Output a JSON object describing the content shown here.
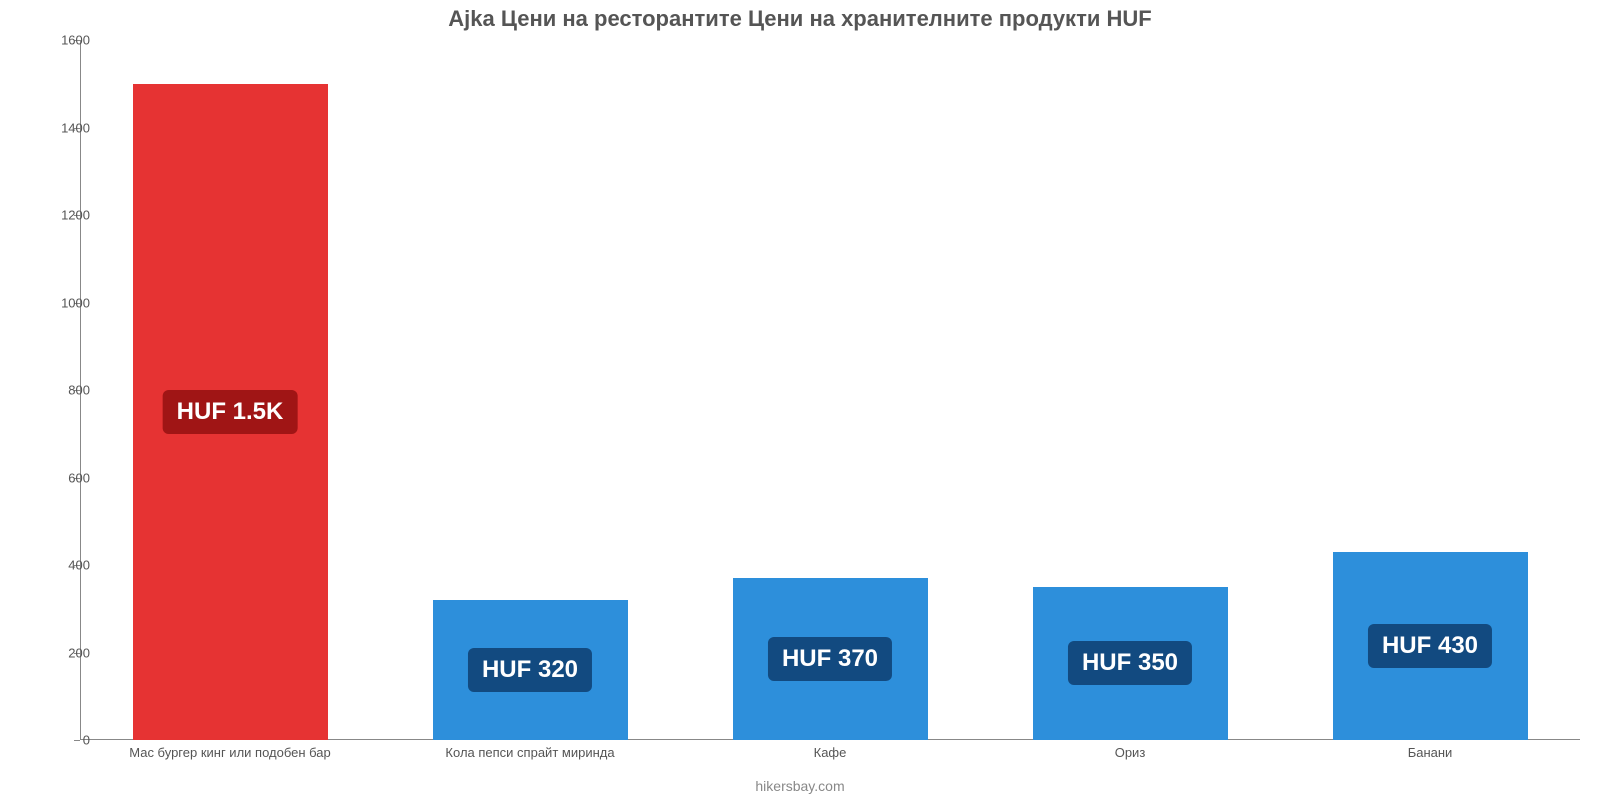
{
  "chart": {
    "type": "bar",
    "title": "Ajka Цени на ресторантите Цени на хранителните продукти HUF",
    "title_fontsize": 22,
    "title_color": "#555555",
    "source": "hikersbay.com",
    "footer_fontsize": 14,
    "footer_color": "#888888",
    "background_color": "#ffffff",
    "axis_color": "#888888",
    "axis_label_color": "#555555",
    "axis_label_fontsize": 13,
    "x_label_fontsize": 13,
    "ylim": [
      0,
      1600
    ],
    "ytick_step": 200,
    "yticks": [
      0,
      200,
      400,
      600,
      800,
      1000,
      1200,
      1400,
      1600
    ],
    "bar_width": 0.65,
    "value_label_fontsize": 24,
    "value_label_color": "#ffffff",
    "categories": [
      "Мас бургер кинг или подобен бар",
      "Кола пепси спрайт миринда",
      "Кафе",
      "Ориз",
      "Банани"
    ],
    "values": [
      1500,
      320,
      370,
      350,
      430
    ],
    "value_labels": [
      "HUF 1.5K",
      "HUF 320",
      "HUF 370",
      "HUF 350",
      "HUF 430"
    ],
    "bar_colors": [
      "#e63333",
      "#2d8fdb",
      "#2d8fdb",
      "#2d8fdb",
      "#2d8fdb"
    ],
    "badge_colors": [
      "#a01515",
      "#124a80",
      "#124a80",
      "#124a80",
      "#124a80"
    ]
  }
}
